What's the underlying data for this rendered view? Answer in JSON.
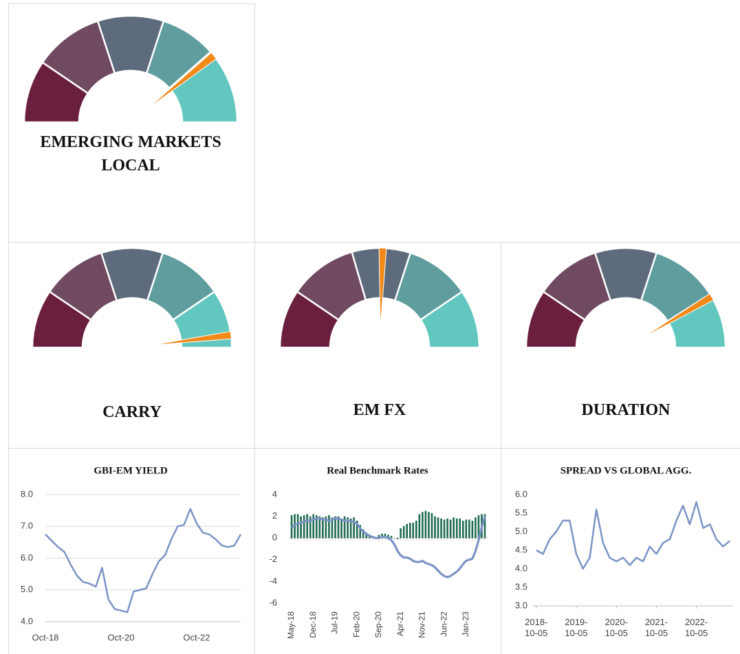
{
  "chart_data": [
    {
      "type": "gauge",
      "title": "EMERGING MARKETS LOCAL",
      "segments": [
        19,
        21,
        20,
        17,
        2,
        21
      ],
      "colors": [
        "#6b1f3f",
        "#6f4a60",
        "#5e6b7c",
        "#5f9d9e",
        "#5e8fa0",
        "#62c7bf"
      ],
      "needle": 78.5,
      "needle_color": "#f28a1a"
    },
    {
      "type": "gauge",
      "title": "CARRY",
      "segments": [
        19,
        21,
        20,
        21,
        19
      ],
      "colors": [
        "#6b1f3f",
        "#6f4a60",
        "#5e6b7c",
        "#5f9d9e",
        "#62c7bf"
      ],
      "needle": 96,
      "needle_color": "#f28a1a"
    },
    {
      "type": "gauge",
      "title": "EM FX",
      "segments": [
        19,
        22,
        19,
        21,
        19
      ],
      "colors": [
        "#6b1f3f",
        "#6f4a60",
        "#5e6b7c",
        "#5f9d9e",
        "#62c7bf"
      ],
      "needle": 51,
      "needle_color": "#f28a1a"
    },
    {
      "type": "gauge",
      "title": "DURATION",
      "segments": [
        19,
        21,
        20,
        22,
        18
      ],
      "colors": [
        "#6b1f3f",
        "#6f4a60",
        "#5e6b7c",
        "#5f9d9e",
        "#62c7bf"
      ],
      "needle": 83,
      "needle_color": "#f28a1a"
    },
    {
      "type": "line",
      "title": "GBI-EM YIELD",
      "categories": [
        "Oct-18",
        null,
        null,
        null,
        null,
        null,
        null,
        null,
        null,
        null,
        null,
        null,
        "Oct-20",
        null,
        null,
        null,
        null,
        null,
        null,
        null,
        null,
        null,
        null,
        null,
        "Oct-22",
        null,
        null,
        null,
        null,
        null,
        null,
        null
      ],
      "values": [
        6.75,
        6.55,
        6.35,
        6.2,
        5.8,
        5.45,
        5.25,
        5.2,
        5.1,
        5.7,
        4.7,
        4.4,
        4.35,
        4.3,
        4.95,
        5.0,
        5.05,
        5.5,
        5.9,
        6.1,
        6.6,
        7.0,
        7.05,
        7.55,
        7.1,
        6.8,
        6.75,
        6.6,
        6.4,
        6.35,
        6.4,
        6.75
      ],
      "color": "#7b93c5",
      "ylim": [
        4,
        8
      ],
      "yticks": [
        {
          "value": 4,
          "label": "4.0"
        },
        {
          "value": 5,
          "label": "5.0"
        },
        {
          "value": 6,
          "label": "6.0"
        },
        {
          "value": 7,
          "label": "7.0"
        },
        {
          "value": 8,
          "label": "8.0"
        }
      ],
      "grid": true
    },
    {
      "type": "bar_line",
      "title": "Real Benchmark Rates",
      "categories": [
        "May-18",
        null,
        null,
        null,
        null,
        null,
        null,
        "Dec-18",
        null,
        null,
        null,
        null,
        null,
        null,
        "Jul-19",
        null,
        null,
        null,
        null,
        null,
        null,
        "Feb-20",
        null,
        null,
        null,
        null,
        null,
        null,
        "Sep-20",
        null,
        null,
        null,
        null,
        null,
        null,
        "Apr-21",
        null,
        null,
        null,
        null,
        null,
        null,
        "Nov-21",
        null,
        null,
        null,
        null,
        null,
        null,
        "Jun-22",
        null,
        null,
        null,
        null,
        null,
        null,
        "Jan-23",
        null,
        null,
        null,
        null,
        null,
        null
      ],
      "series": [
        {
          "type": "bar",
          "color": "#1d6a52",
          "values": [
            2.1,
            2.2,
            2.2,
            2.0,
            2.1,
            2.2,
            2.0,
            2.2,
            2.1,
            2.0,
            1.9,
            2.0,
            2.1,
            1.9,
            2.0,
            2.0,
            1.8,
            2.0,
            1.9,
            1.8,
            1.9,
            1.6,
            1.2,
            0.8,
            0.5,
            0.3,
            0.2,
            0.1,
            0.3,
            0.4,
            0.4,
            0.3,
            0.2,
            0.0,
            -0.1,
            0.9,
            1.1,
            1.3,
            1.4,
            1.4,
            1.6,
            2.2,
            2.4,
            2.5,
            2.4,
            2.3,
            2.0,
            1.9,
            1.8,
            1.7,
            1.8,
            1.7,
            1.9,
            1.8,
            1.8,
            1.6,
            1.7,
            1.7,
            1.6,
            1.9,
            2.1,
            2.2,
            2.2
          ]
        },
        {
          "type": "line",
          "color": "#7b93c5",
          "values": [
            1.0,
            1.2,
            1.3,
            1.4,
            1.5,
            1.6,
            1.6,
            1.7,
            1.8,
            1.8,
            1.7,
            1.7,
            1.6,
            1.7,
            1.8,
            1.8,
            1.7,
            1.6,
            1.6,
            1.5,
            1.5,
            1.3,
            0.9,
            0.6,
            0.4,
            0.2,
            0.1,
            0.0,
            0.0,
            0.1,
            0.1,
            0.0,
            -0.2,
            -0.6,
            -1.2,
            -1.6,
            -1.8,
            -1.8,
            -1.9,
            -2.1,
            -2.2,
            -2.2,
            -2.1,
            -2.3,
            -2.4,
            -2.5,
            -2.7,
            -3.0,
            -3.3,
            -3.5,
            -3.6,
            -3.5,
            -3.3,
            -3.1,
            -2.8,
            -2.4,
            -2.1,
            -2.0,
            -1.9,
            -1.2,
            -0.2,
            1.0,
            2.0
          ]
        }
      ],
      "ylim": [
        -6,
        4
      ],
      "yticks": [
        4,
        2,
        0,
        -2,
        -4,
        -6
      ],
      "grid": false
    },
    {
      "type": "line_date",
      "title": "SPREAD VS GLOBAL AGG.",
      "x": [
        "2018-10-05",
        "2018-12-05",
        "2019-02-05",
        "2019-04-05",
        "2019-06-05",
        "2019-08-05",
        "2019-10-05",
        "2019-12-05",
        "2020-02-05",
        "2020-04-05",
        "2020-06-05",
        "2020-08-05",
        "2020-10-05",
        "2020-12-05",
        "2021-02-05",
        "2021-04-05",
        "2021-06-05",
        "2021-08-05",
        "2021-10-05",
        "2021-12-05",
        "2022-02-05",
        "2022-04-05",
        "2022-06-05",
        "2022-08-05",
        "2022-10-05",
        "2022-12-05",
        "2023-02-05",
        "2023-04-05",
        "2023-06-05",
        "2023-08-05"
      ],
      "values": [
        4.5,
        4.4,
        4.8,
        5.0,
        5.3,
        5.3,
        4.4,
        4.0,
        4.3,
        5.6,
        4.7,
        4.3,
        4.2,
        4.3,
        4.1,
        4.3,
        4.2,
        4.6,
        4.4,
        4.7,
        4.8,
        5.3,
        5.7,
        5.2,
        5.8,
        5.1,
        5.2,
        4.8,
        4.6,
        4.75
      ],
      "color": "#7b93c5",
      "xlim": [
        "2018-09-05",
        "2023-09-05"
      ],
      "xticks": [
        "2018-10-05",
        "2019-10-05",
        "2020-10-05",
        "2021-10-05",
        "2022-10-05"
      ],
      "ylim": [
        3,
        6
      ],
      "yticks": [
        {
          "value": 3,
          "label": "3.0"
        },
        {
          "value": 3.5,
          "label": "3.5"
        },
        {
          "value": 4,
          "label": "4.0"
        },
        {
          "value": 4.5,
          "label": "4.5"
        },
        {
          "value": 5,
          "label": "5.0"
        },
        {
          "value": 5.5,
          "label": "5.5"
        },
        {
          "value": 6,
          "label": "6.0"
        }
      ],
      "grid": false
    }
  ]
}
